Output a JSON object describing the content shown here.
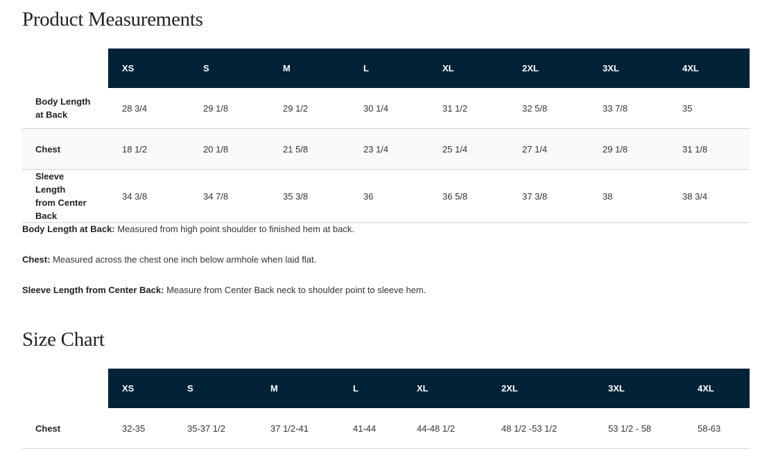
{
  "measurements": {
    "title": "Product Measurements",
    "sizes": [
      "XS",
      "S",
      "M",
      "L",
      "XL",
      "2XL",
      "3XL",
      "4XL"
    ],
    "rows": [
      {
        "label": "Body Length at Back",
        "values": [
          "28 3/4",
          "29 1/8",
          "29 1/2",
          "30 1/4",
          "31 1/2",
          "32 5/8",
          "33 7/8",
          "35"
        ]
      },
      {
        "label": "Chest",
        "values": [
          "18 1/2",
          "20 1/8",
          "21 5/8",
          "23 1/4",
          "25 1/4",
          "27 1/4",
          "29 1/8",
          "31 1/8"
        ]
      },
      {
        "label": "Sleeve Length from Center Back",
        "values": [
          "34 3/8",
          "34 7/8",
          "35 3/8",
          "36",
          "36 5/8",
          "37 3/8",
          "38",
          "38 3/4"
        ]
      }
    ],
    "notes": [
      {
        "term": "Body Length at Back:",
        "text": " Measured from high point shoulder to finished hem at back."
      },
      {
        "term": "Chest:",
        "text": " Measured across the chest one inch below armhole when laid flat."
      },
      {
        "term": "Sleeve Length from Center Back:",
        "text": " Measure from Center Back neck to shoulder point to sleeve hem."
      }
    ]
  },
  "size_chart": {
    "title": "Size Chart",
    "sizes": [
      "XS",
      "S",
      "M",
      "L",
      "XL",
      "2XL",
      "3XL",
      "4XL"
    ],
    "rows": [
      {
        "label": "Chest",
        "values": [
          "32-35",
          "35-37 1/2",
          "37 1/2-41",
          "41-44",
          "44-48 1/2",
          "48 1/2 -53 1/2",
          "53 1/2 - 58",
          "58-63"
        ]
      }
    ]
  },
  "colors": {
    "header_bg": "#022238",
    "header_text": "#ffffff",
    "alt_row": "#fafafa"
  }
}
